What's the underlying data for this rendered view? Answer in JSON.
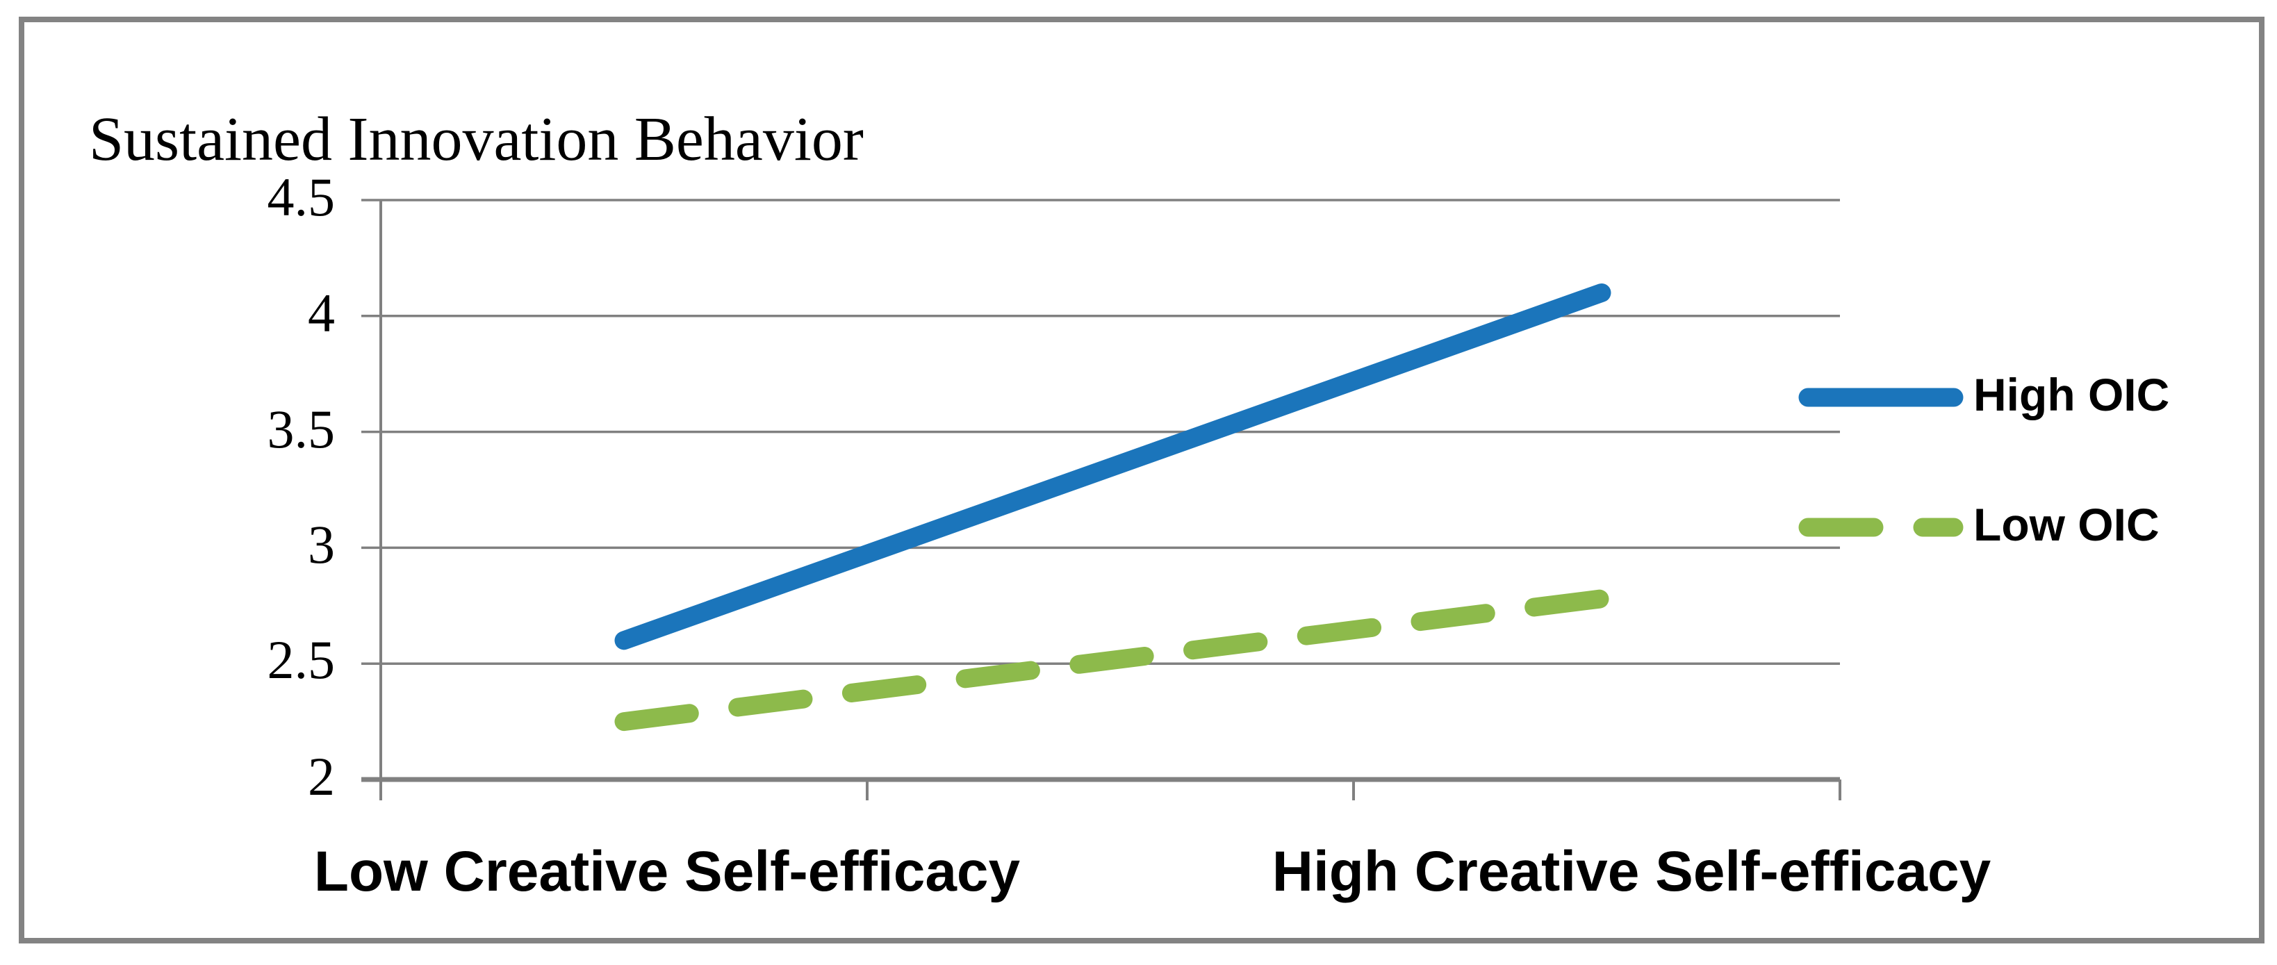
{
  "figure": {
    "title": "Sustained Innovation Behavior"
  },
  "chart_data": {
    "type": "line",
    "title": "Sustained Innovation Behavior",
    "title_role": "y-axis label shown above plot",
    "categories": [
      "Low Creative Self-efficacy",
      "High Creative Self-efficacy"
    ],
    "series": [
      {
        "name": "High OIC",
        "values": [
          2.6,
          4.1
        ],
        "color": "#1b75bb",
        "style": "solid"
      },
      {
        "name": "Low OIC",
        "values": [
          2.25,
          2.78
        ],
        "color": "#8dba4b",
        "style": "dashed"
      }
    ],
    "ylim": [
      2,
      4.5
    ],
    "ytick_step": 0.5,
    "yticks": [
      "4.5",
      "4",
      "3.5",
      "3",
      "2.5",
      "2"
    ],
    "grid": true,
    "legend_position": "right",
    "colors": {
      "axis": "#808080",
      "gridline": "#808080",
      "border": "#838383",
      "text": "#000000",
      "background": "#ffffff"
    }
  }
}
